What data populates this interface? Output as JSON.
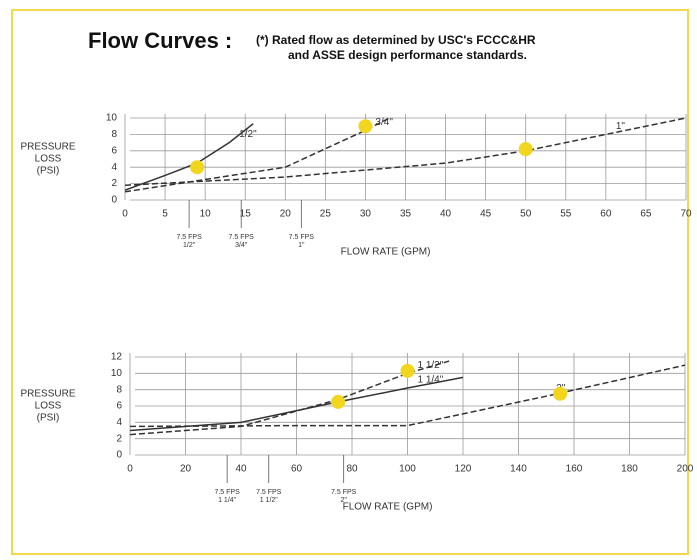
{
  "header": {
    "title": "Flow Curves :",
    "note": [
      "(*) Rated flow as determined by USC's FCCC&HR",
      "and  ASSE design performance standards."
    ]
  },
  "chart_data": [
    {
      "type": "line",
      "ylabel": [
        "PRESSURE",
        "LOSS",
        "(PSI)"
      ],
      "xlabel": "FLOW RATE (GPM)",
      "xlim": [
        0,
        70
      ],
      "xticks": [
        0,
        5,
        10,
        15,
        20,
        25,
        30,
        35,
        40,
        45,
        50,
        55,
        60,
        65,
        70
      ],
      "ylim": [
        0,
        10
      ],
      "yticks": [
        0,
        2,
        4,
        6,
        8,
        10
      ],
      "grid": true,
      "series": [
        {
          "name": "1/2\"",
          "color": "#333333",
          "dashed": false,
          "x": [
            0,
            5,
            9,
            13,
            16
          ],
          "values": [
            1.2,
            3,
            4.5,
            7,
            9.3
          ]
        },
        {
          "name": "3/4\"",
          "color": "#333333",
          "dashed": true,
          "x": [
            0,
            10,
            20,
            30,
            33
          ],
          "values": [
            1,
            2.5,
            4,
            8.5,
            10
          ]
        },
        {
          "name": "1\"",
          "color": "#333333",
          "dashed": true,
          "x": [
            0,
            20,
            40,
            50,
            60,
            70
          ],
          "values": [
            1.8,
            2.8,
            4.5,
            6,
            8,
            10
          ]
        }
      ],
      "rated_points": {
        "color": "#f2d61e",
        "x": [
          9,
          30,
          50
        ],
        "values": [
          4,
          9,
          6.2
        ]
      },
      "annotations": [
        {
          "x": 8,
          "text": [
            "7.5 FPS",
            "1/2\""
          ]
        },
        {
          "x": 14.5,
          "text": [
            "7.5 FPS",
            "3/4\""
          ]
        },
        {
          "x": 22,
          "text": [
            "7.5 FPS",
            "1\""
          ]
        }
      ]
    },
    {
      "type": "line",
      "ylabel": [
        "PRESSURE",
        "LOSS",
        "(PSI)"
      ],
      "xlabel": "FLOW RATE (GPM)",
      "xlim": [
        0,
        200
      ],
      "xticks": [
        0,
        20,
        40,
        60,
        80,
        100,
        120,
        140,
        160,
        180,
        200
      ],
      "ylim": [
        0,
        12
      ],
      "yticks": [
        0,
        2,
        4,
        6,
        8,
        10,
        12
      ],
      "grid": true,
      "series": [
        {
          "name": "1 1/2\"",
          "color": "#333333",
          "dashed": true,
          "x": [
            0,
            40,
            75,
            100,
            115
          ],
          "values": [
            2.5,
            3.5,
            6.8,
            10,
            11.5
          ]
        },
        {
          "name": "1 1/4\"",
          "color": "#333333",
          "dashed": false,
          "x": [
            0,
            40,
            75,
            100,
            120
          ],
          "values": [
            3,
            4,
            6.5,
            8.2,
            9.5
          ]
        },
        {
          "name": "2\"",
          "color": "#333333",
          "dashed": true,
          "x": [
            0,
            60,
            100,
            150,
            200
          ],
          "values": [
            3.5,
            3.6,
            3.6,
            7.2,
            11
          ]
        }
      ],
      "rated_points": {
        "color": "#f2d61e",
        "x": [
          75,
          100,
          155
        ],
        "values": [
          6.5,
          10.3,
          7.5
        ]
      },
      "annotations": [
        {
          "x": 35,
          "text": [
            "7.5 FPS",
            "1 1/4\""
          ]
        },
        {
          "x": 50,
          "text": [
            "7.5 FPS",
            "1 1/2\""
          ]
        },
        {
          "x": 77,
          "text": [
            "7.5 FPS",
            "2\""
          ]
        }
      ]
    }
  ]
}
